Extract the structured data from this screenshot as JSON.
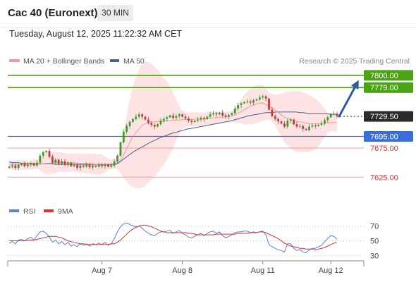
{
  "header": {
    "title": "Cac 40 (Euronext)",
    "timeframe": "30 MIN",
    "datetime": "Tuesday, August 12, 2025 11:22:32 AM CET"
  },
  "legend": {
    "ma20_bb": "MA 20 + Bollinger Bands",
    "ma50": "MA 50",
    "credit": "Research © 2025 Trading Central",
    "rsi": "RSI",
    "rsi_ma": "9MA"
  },
  "colors": {
    "green": "#4aa312",
    "blue": "#3b6fd8",
    "red": "#e03030",
    "pink_line": "#f29a9a",
    "band": "#fde0e0",
    "ma50": "#4a5f93",
    "arrow": "#2d5aa8",
    "candle_up": "#3a9a2a",
    "candle_down": "#c73a3a"
  },
  "chart_data": [
    {
      "type": "candlestick",
      "ylim": [
        7612,
        7812
      ],
      "x_ticks": [
        "Aug 7",
        "Aug 8",
        "Aug 11",
        "Aug 12"
      ],
      "levels": [
        {
          "value": 7800,
          "label": "7800.00",
          "style": "green"
        },
        {
          "value": 7779,
          "label": "7779.00",
          "style": "green"
        },
        {
          "value": 7729.5,
          "label": "7729.50",
          "style": "current"
        },
        {
          "value": 7695,
          "label": "7695.00",
          "style": "blue"
        },
        {
          "value": 7675,
          "label": "7675.00",
          "style": "red"
        },
        {
          "value": 7625,
          "label": "7625.00",
          "style": "red"
        }
      ],
      "series": [
        {
          "name": "Price",
          "close": [
            7643,
            7645,
            7641,
            7646,
            7648,
            7644,
            7647,
            7649,
            7645,
            7650,
            7662,
            7668,
            7670,
            7660,
            7650,
            7655,
            7648,
            7652,
            7647,
            7650,
            7644,
            7646,
            7641,
            7645,
            7643,
            7646,
            7642,
            7645,
            7643,
            7646,
            7644,
            7647,
            7643,
            7645,
            7652,
            7662,
            7685,
            7703,
            7713,
            7720,
            7725,
            7729,
            7733,
            7729,
            7724,
            7718,
            7715,
            7712,
            7716,
            7722,
            7725,
            7728,
            7731,
            7727,
            7730,
            7733,
            7729,
            7726,
            7722,
            7720,
            7722,
            7724,
            7727,
            7725,
            7729,
            7733,
            7735,
            7733,
            7736,
            7731,
            7729,
            7732,
            7735,
            7743,
            7749,
            7752,
            7754,
            7755,
            7753,
            7757,
            7759,
            7762,
            7764,
            7760,
            7741,
            7730,
            7725,
            7721,
            7717,
            7712,
            7722,
            7724,
            7716,
            7712,
            7713,
            7708,
            7706,
            7712,
            7714,
            7713,
            7715,
            7717,
            7723,
            7728,
            7734,
            7734,
            7730
          ]
        },
        {
          "name": "MA 20",
          "values": [
            7646,
            7646,
            7646,
            7646,
            7646,
            7646,
            7646,
            7646,
            7647,
            7647,
            7648,
            7648,
            7649,
            7649,
            7650,
            7650,
            7651,
            7651,
            7650,
            7650,
            7650,
            7650,
            7649,
            7649,
            7649,
            7648,
            7648,
            7648,
            7647,
            7647,
            7647,
            7647,
            7647,
            7647,
            7648,
            7649,
            7654,
            7663,
            7674,
            7685,
            7695,
            7702,
            7708,
            7714,
            7717,
            7719,
            7720,
            7720,
            7721,
            7721,
            7721,
            7722,
            7722,
            7723,
            7723,
            7723,
            7724,
            7724,
            7724,
            7724,
            7725,
            7725,
            7725,
            7725,
            7726,
            7726,
            7727,
            7727,
            7728,
            7728,
            7729,
            7729,
            7730,
            7732,
            7735,
            7738,
            7741,
            7744,
            7747,
            7749,
            7751,
            7752,
            7753,
            7750,
            7747,
            7744,
            7740,
            7736,
            7732,
            7728,
            7726,
            7724,
            7722,
            7721,
            7720,
            7719,
            7718,
            7717,
            7717,
            7717,
            7717,
            7718,
            7718,
            7718,
            7719,
            7719,
            7719
          ]
        },
        {
          "name": "MA 50",
          "values": [
            7651,
            7650,
            7650,
            7650,
            7649,
            7649,
            7649,
            7649,
            7648,
            7648,
            7648,
            7648,
            7648,
            7648,
            7648,
            7647,
            7647,
            7647,
            7647,
            7647,
            7647,
            7647,
            7647,
            7647,
            7647,
            7647,
            7647,
            7647,
            7647,
            7646,
            7646,
            7646,
            7646,
            7646,
            7647,
            7648,
            7652,
            7656,
            7660,
            7664,
            7668,
            7671,
            7674,
            7677,
            7680,
            7683,
            7686,
            7688,
            7691,
            7693,
            7695,
            7697,
            7699,
            7701,
            7702,
            7704,
            7705,
            7707,
            7708,
            7709,
            7710,
            7711,
            7712,
            7713,
            7714,
            7715,
            7716,
            7717,
            7718,
            7719,
            7720,
            7721,
            7722,
            7724,
            7725,
            7727,
            7728,
            7730,
            7731,
            7732,
            7733,
            7734,
            7735,
            7736,
            7736,
            7736,
            7737,
            7737,
            7737,
            7737,
            7737,
            7737,
            7737,
            7737,
            7736,
            7736,
            7735,
            7734,
            7734,
            7734,
            7734,
            7734,
            7734,
            7734,
            7733,
            7733,
            7733
          ]
        }
      ],
      "forecast": {
        "from": 7729.5,
        "to": 7800
      }
    },
    {
      "type": "line",
      "ylim": [
        25,
        78
      ],
      "y_ticks": [
        70,
        50,
        30
      ],
      "series": [
        {
          "name": "RSI",
          "values": [
            47,
            49,
            46,
            51,
            52,
            50,
            53,
            55,
            51,
            57,
            62,
            63,
            60,
            55,
            48,
            51,
            46,
            49,
            45,
            48,
            43,
            45,
            42,
            46,
            44,
            46,
            43,
            46,
            45,
            47,
            45,
            48,
            44,
            46,
            53,
            62,
            69,
            73,
            74,
            72,
            70,
            69,
            70,
            67,
            63,
            60,
            58,
            57,
            60,
            62,
            62,
            63,
            64,
            60,
            62,
            64,
            60,
            58,
            55,
            54,
            56,
            58,
            60,
            57,
            60,
            62,
            63,
            60,
            62,
            57,
            54,
            56,
            58,
            61,
            62,
            62,
            63,
            63,
            61,
            62,
            61,
            62,
            63,
            58,
            45,
            42,
            40,
            38,
            37,
            35,
            46,
            46,
            40,
            37,
            38,
            35,
            34,
            38,
            40,
            40,
            42,
            44,
            49,
            53,
            57,
            56,
            52
          ]
        },
        {
          "name": "9MA",
          "values": [
            50,
            50,
            50,
            50,
            50,
            50,
            51,
            51,
            51,
            52,
            53,
            54,
            55,
            56,
            56,
            56,
            55,
            54,
            52,
            50,
            49,
            48,
            47,
            46,
            46,
            45,
            45,
            45,
            45,
            45,
            45,
            45,
            45,
            46,
            46,
            48,
            51,
            55,
            59,
            63,
            66,
            68,
            70,
            71,
            71,
            70,
            69,
            67,
            65,
            63,
            62,
            61,
            61,
            61,
            61,
            61,
            61,
            61,
            60,
            60,
            59,
            58,
            58,
            58,
            58,
            58,
            58,
            59,
            59,
            59,
            59,
            59,
            59,
            59,
            60,
            60,
            60,
            60,
            61,
            61,
            61,
            62,
            62,
            61,
            59,
            57,
            55,
            53,
            50,
            47,
            45,
            43,
            42,
            41,
            40,
            40,
            39,
            39,
            39,
            38,
            39,
            40,
            41,
            43,
            45,
            47,
            48
          ]
        }
      ]
    }
  ]
}
